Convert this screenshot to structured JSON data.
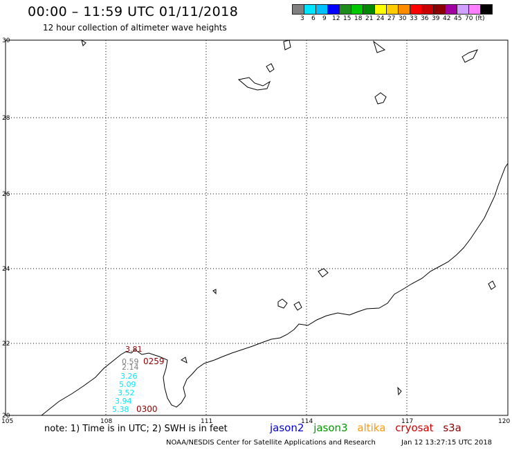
{
  "header": {
    "title": "00:00 – 11:59 UTC 01/11/2018",
    "subtitle": "12 hour collection of altimeter wave heights"
  },
  "legend": {
    "colors": [
      "#808080",
      "#00e5ff",
      "#00bfff",
      "#0000ff",
      "#1c8c1c",
      "#00c800",
      "#008800",
      "#ffff00",
      "#ffcc00",
      "#ff8c00",
      "#ff0000",
      "#c80000",
      "#8b0000",
      "#a000a0",
      "#d0a0ff",
      "#ff80ff",
      "#000000"
    ],
    "labels": [
      "3",
      "6",
      "9",
      "12",
      "15",
      "18",
      "21",
      "24",
      "27",
      "30",
      "33",
      "36",
      "39",
      "42",
      "45",
      "70",
      "(ft)"
    ]
  },
  "axes": {
    "lon_ticks": [
      "105",
      "108",
      "111",
      "114",
      "117",
      "120"
    ],
    "lat_ticks": [
      "30",
      "28",
      "26",
      "24",
      "22",
      "20"
    ]
  },
  "observations": {
    "values": [
      {
        "text": "3.81",
        "color": "#8b0000"
      },
      {
        "text": "0.59",
        "color": "#808080"
      },
      {
        "text": "2.14",
        "color": "#808080"
      },
      {
        "text": "3.26",
        "color": "#00e5ff"
      },
      {
        "text": "5.09",
        "color": "#00e5ff"
      },
      {
        "text": "3.52",
        "color": "#00e5ff"
      },
      {
        "text": "3.94",
        "color": "#00e5ff"
      },
      {
        "text": "5.38",
        "color": "#00e5ff"
      }
    ],
    "times": [
      {
        "text": "0259",
        "color": "#8b0000"
      },
      {
        "text": "0300",
        "color": "#8b0000"
      }
    ]
  },
  "footer": {
    "note": "note:  1) Time is in UTC;  2) SWH is in feet",
    "satellites": [
      {
        "name": "jason2",
        "color": "#0000cc"
      },
      {
        "name": "jason3",
        "color": "#009900"
      },
      {
        "name": "altika",
        "color": "#ff9900"
      },
      {
        "name": "cryosat",
        "color": "#cc0000"
      },
      {
        "name": "s3a",
        "color": "#8b0000"
      }
    ],
    "credit": "NOAA/NESDIS Center for Satellite Applications and Research",
    "timestamp": "Jan 12 13:27:15 UTC 2018"
  }
}
